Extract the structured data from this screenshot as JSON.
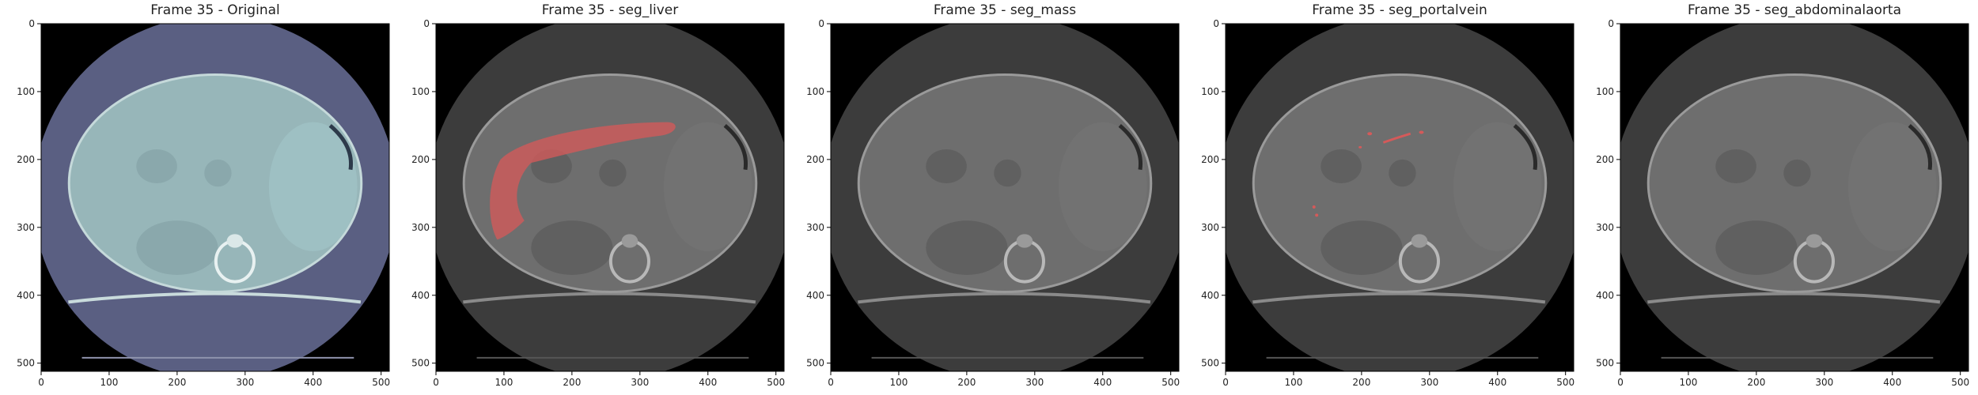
{
  "figure": {
    "panels": [
      {
        "title": "Frame 35 - Original",
        "mask": "none"
      },
      {
        "title": "Frame 35 - seg_liver",
        "mask": "liver"
      },
      {
        "title": "Frame 35 - seg_mass",
        "mask": "none"
      },
      {
        "title": "Frame 35 - seg_portalvein",
        "mask": "portalvein"
      },
      {
        "title": "Frame 35 - seg_abdominalaorta",
        "mask": "none"
      }
    ],
    "x_ticks": [
      "0",
      "100",
      "200",
      "300",
      "400",
      "500"
    ],
    "y_ticks": [
      "0",
      "100",
      "200",
      "300",
      "400",
      "500"
    ],
    "image_size": [
      512,
      512
    ]
  },
  "colors": {
    "background": "#000000",
    "original_tint": "#5a5f82",
    "body_tint": "#97b6b9",
    "gray_fov": "#3c3c3c",
    "gray_body": "#6e6e6e",
    "mask_red": "#d45a5a"
  }
}
